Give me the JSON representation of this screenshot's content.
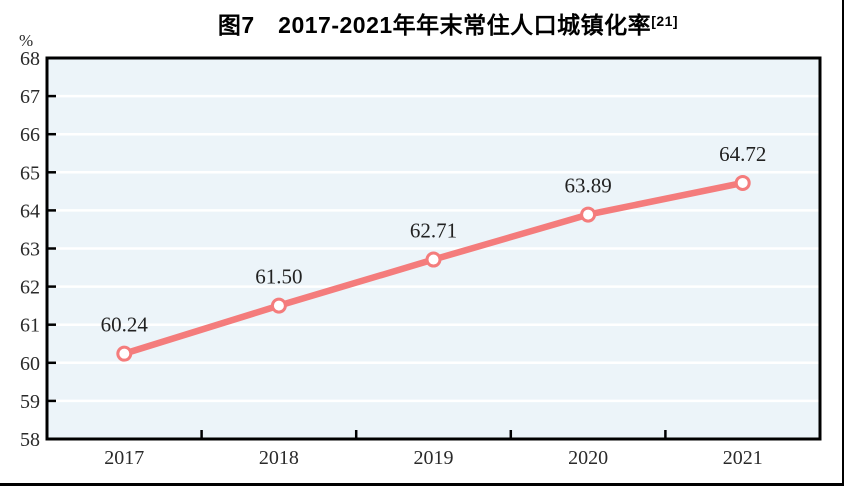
{
  "figure": {
    "title": "图7　2017-2021年年末常住人口城镇化率",
    "title_superscript": "[21]",
    "unit_label": "%"
  },
  "chart_data": {
    "type": "line",
    "title": "图7 2017-2021年年末常住人口城镇化率[21]",
    "xlabel": "",
    "ylabel": "%",
    "categories": [
      "2017",
      "2018",
      "2019",
      "2020",
      "2021"
    ],
    "series": [
      {
        "name": "年末常住人口城镇化率",
        "values": [
          60.24,
          61.5,
          62.71,
          63.89,
          64.72
        ],
        "labels": [
          "60.24",
          "61.50",
          "62.71",
          "63.89",
          "64.72"
        ]
      }
    ],
    "ylim": [
      58,
      68
    ],
    "ytick_step": 1,
    "ytick_labels": [
      "58",
      "59",
      "60",
      "61",
      "62",
      "63",
      "64",
      "65",
      "66",
      "67",
      "68"
    ],
    "grid": true,
    "legend_position": "none",
    "colors": {
      "line": "#f47c7c",
      "marker_fill": "#ffffff",
      "marker_stroke": "#f47c7c",
      "plot_background": "#ecf4f9",
      "gridline": "#ffffff",
      "axis": "#000000",
      "tick_text": "#2a2a2a",
      "data_label_text": "#222222"
    }
  }
}
